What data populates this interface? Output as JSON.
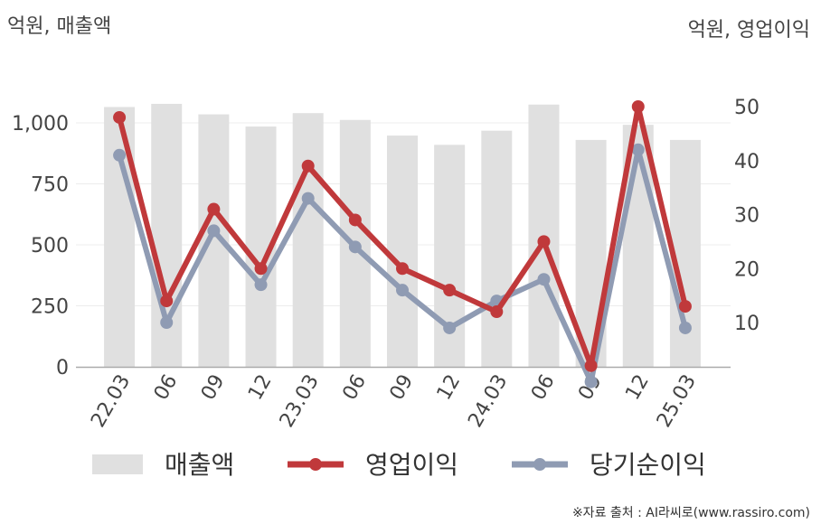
{
  "chart_data": {
    "type": "bar+line",
    "left_unit": "억원, 매출액",
    "right_unit": "억원, 영업이익",
    "categories": [
      "22.03",
      "06",
      "09",
      "12",
      "23.03",
      "06",
      "09",
      "12",
      "24.03",
      "06",
      "09",
      "12",
      "25.03"
    ],
    "left_axis": {
      "ticks": [
        "0",
        "250",
        "500",
        "750",
        "1,000"
      ],
      "tick_values": [
        0,
        250,
        500,
        750,
        1000
      ],
      "ylim": [
        0,
        1100
      ]
    },
    "right_axis": {
      "ticks": [
        "10",
        "20",
        "30",
        "40",
        "50"
      ],
      "tick_values": [
        10,
        20,
        30,
        40,
        50
      ],
      "ylim": [
        0,
        55
      ]
    },
    "series": [
      {
        "name": "매출액",
        "kind": "bar",
        "axis": "left",
        "color": "#e0e0e0",
        "values": [
          1065,
          1078,
          1035,
          985,
          1040,
          1012,
          948,
          910,
          968,
          1075,
          930,
          992,
          930
        ]
      },
      {
        "name": "영업이익",
        "kind": "line",
        "axis": "right",
        "color": "#c0393b",
        "values": [
          48,
          14,
          31,
          20,
          39,
          29,
          20,
          16,
          12,
          25,
          2,
          50,
          13
        ]
      },
      {
        "name": "당기순이익",
        "kind": "line",
        "axis": "right",
        "color": "#8f9bb3",
        "values": [
          41,
          10,
          27,
          17,
          33,
          24,
          16,
          9,
          14,
          18,
          -1,
          42,
          9
        ]
      }
    ],
    "grid": true,
    "legend": "bottom"
  },
  "source": "※자료 출처 : AI라씨로(www.rassiro.com)"
}
